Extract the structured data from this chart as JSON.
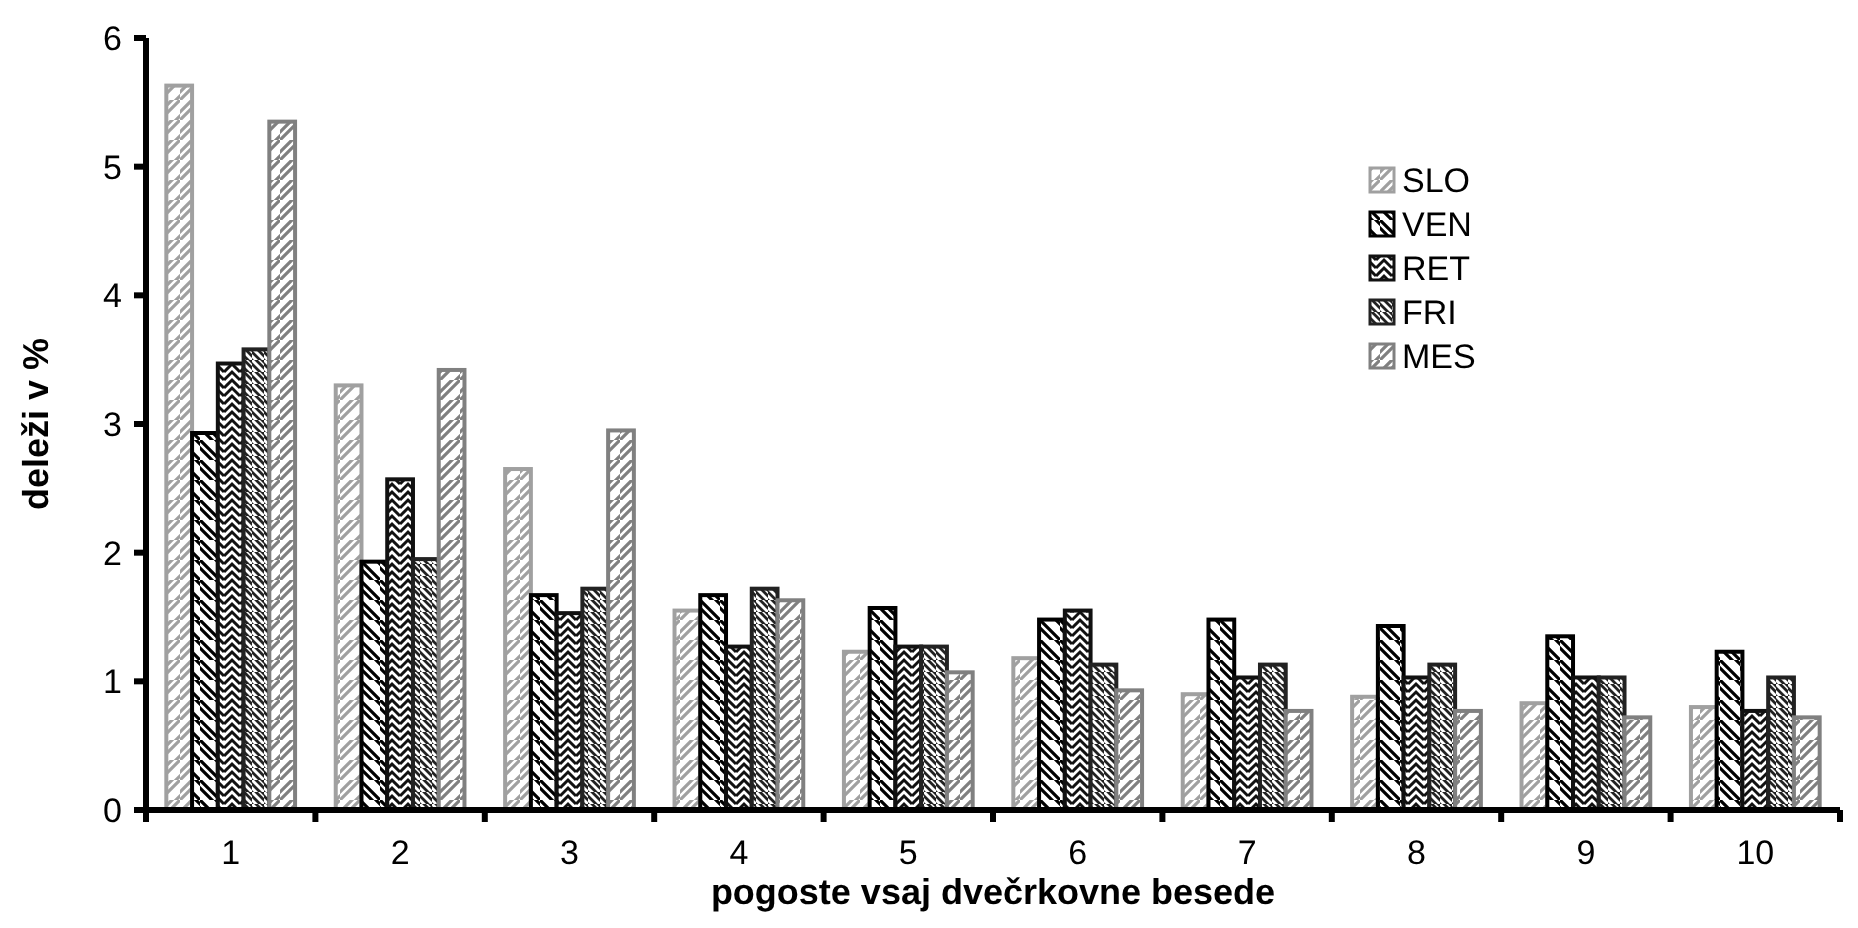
{
  "chart_data": {
    "type": "bar",
    "xlabel": "pogoste vsaj dvečrkovne besede",
    "ylabel": "deleži v %",
    "categories": [
      "1",
      "2",
      "3",
      "4",
      "5",
      "6",
      "7",
      "8",
      "9",
      "10"
    ],
    "series": [
      {
        "name": "SLO",
        "color": "#a0a0a0",
        "values": [
          5.63,
          3.3,
          2.65,
          1.55,
          1.23,
          1.18,
          0.9,
          0.88,
          0.83,
          0.8
        ]
      },
      {
        "name": "VEN",
        "color": "#000000",
        "values": [
          2.93,
          1.93,
          1.67,
          1.67,
          1.57,
          1.48,
          1.48,
          1.43,
          1.35,
          1.23
        ]
      },
      {
        "name": "RET",
        "color": "#111111",
        "values": [
          3.47,
          2.57,
          1.53,
          1.27,
          1.27,
          1.55,
          1.03,
          1.03,
          1.03,
          0.77
        ]
      },
      {
        "name": "FRI",
        "color": "#222222",
        "values": [
          3.58,
          1.95,
          1.72,
          1.72,
          1.27,
          1.13,
          1.13,
          1.13,
          1.03,
          1.03
        ]
      },
      {
        "name": "MES",
        "color": "#808080",
        "values": [
          5.35,
          3.42,
          2.95,
          1.63,
          1.07,
          0.93,
          0.77,
          0.77,
          0.72,
          0.72
        ]
      }
    ],
    "ylim": [
      0,
      6
    ],
    "yticks": [
      0,
      1,
      2,
      3,
      4,
      5,
      6
    ],
    "legend": "top right",
    "grid": false
  }
}
